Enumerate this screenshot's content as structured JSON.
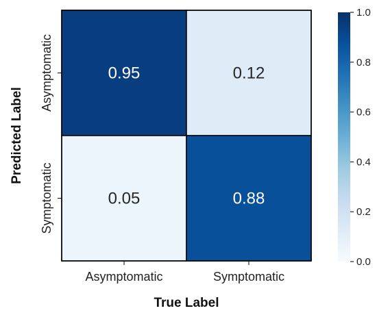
{
  "chart_data": {
    "type": "heatmap",
    "x_categories": [
      "Asymptomatic",
      "Symptomatic"
    ],
    "y_categories": [
      "Asymptomatic",
      "Symptomatic"
    ],
    "values": [
      [
        0.95,
        0.12
      ],
      [
        0.05,
        0.88
      ]
    ],
    "xlabel": "True Label",
    "ylabel": "Predicted Label",
    "colorbar": {
      "range": [
        0.0,
        1.0
      ],
      "ticks": [
        "0.0",
        "0.2",
        "0.4",
        "0.6",
        "0.8",
        "1.0"
      ],
      "colormap": "Blues"
    }
  }
}
